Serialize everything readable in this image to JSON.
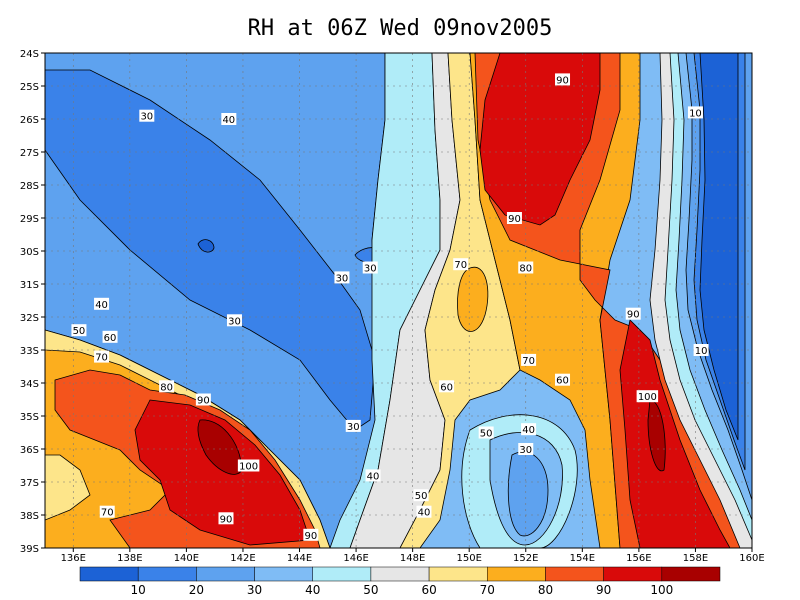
{
  "chart_data": {
    "type": "heatmap",
    "title": "RH at 06Z Wed 09nov2005",
    "x_ticks": [
      "136E",
      "138E",
      "140E",
      "142E",
      "144E",
      "146E",
      "148E",
      "150E",
      "152E",
      "154E",
      "156E",
      "158E",
      "160E"
    ],
    "y_ticks": [
      "24S",
      "25S",
      "26S",
      "27S",
      "28S",
      "29S",
      "30S",
      "31S",
      "32S",
      "33S",
      "34S",
      "35S",
      "36S",
      "37S",
      "38S",
      "39S"
    ],
    "xlim": [
      135,
      160
    ],
    "ylim": [
      -39,
      -24
    ],
    "grid": true,
    "colorbar": {
      "labels": [
        "10",
        "20",
        "30",
        "40",
        "50",
        "60",
        "70",
        "80",
        "90",
        "100"
      ],
      "colors": [
        "#1c62d6",
        "#3a82e9",
        "#5ea2ef",
        "#7fbcf5",
        "#b0ecf8",
        "#e6e6e6",
        "#fde58a",
        "#fcae1e",
        "#f4541c",
        "#d90a0a",
        "#a80000"
      ]
    },
    "contour_labels": [
      {
        "text": "30",
        "lon": 138.6,
        "lat": -25.9
      },
      {
        "text": "40",
        "lon": 141.5,
        "lat": -26.0
      },
      {
        "text": "30",
        "lon": 145.5,
        "lat": -30.8
      },
      {
        "text": "30",
        "lon": 146.5,
        "lat": -30.5
      },
      {
        "text": "30",
        "lon": 141.7,
        "lat": -32.1
      },
      {
        "text": "40",
        "lon": 137.0,
        "lat": -31.6
      },
      {
        "text": "50",
        "lon": 136.2,
        "lat": -32.4
      },
      {
        "text": "60",
        "lon": 137.3,
        "lat": -32.6
      },
      {
        "text": "70",
        "lon": 137.0,
        "lat": -33.2
      },
      {
        "text": "80",
        "lon": 139.3,
        "lat": -34.1
      },
      {
        "text": "90",
        "lon": 140.6,
        "lat": -34.5
      },
      {
        "text": "100",
        "lon": 142.2,
        "lat": -36.5
      },
      {
        "text": "90",
        "lon": 141.4,
        "lat": -38.1
      },
      {
        "text": "90",
        "lon": 144.4,
        "lat": -38.6
      },
      {
        "text": "70",
        "lon": 137.2,
        "lat": -37.9
      },
      {
        "text": "30",
        "lon": 145.9,
        "lat": -35.3
      },
      {
        "text": "40",
        "lon": 146.6,
        "lat": -36.8
      },
      {
        "text": "50",
        "lon": 148.3,
        "lat": -37.4
      },
      {
        "text": "40",
        "lon": 148.4,
        "lat": -37.9
      },
      {
        "text": "60",
        "lon": 149.2,
        "lat": -34.1
      },
      {
        "text": "70",
        "lon": 149.7,
        "lat": -30.4
      },
      {
        "text": "50",
        "lon": 150.6,
        "lat": -35.5
      },
      {
        "text": "40",
        "lon": 152.1,
        "lat": -35.4
      },
      {
        "text": "30",
        "lon": 152.0,
        "lat": -36.0
      },
      {
        "text": "70",
        "lon": 152.1,
        "lat": -33.3
      },
      {
        "text": "60",
        "lon": 153.3,
        "lat": -33.9
      },
      {
        "text": "80",
        "lon": 152.0,
        "lat": -30.5
      },
      {
        "text": "90",
        "lon": 151.6,
        "lat": -29.0
      },
      {
        "text": "90",
        "lon": 153.3,
        "lat": -24.8
      },
      {
        "text": "90",
        "lon": 155.8,
        "lat": -31.9
      },
      {
        "text": "100",
        "lon": 156.3,
        "lat": -34.4
      },
      {
        "text": "10",
        "lon": 158.0,
        "lat": -25.8
      },
      {
        "text": "10",
        "lon": 158.2,
        "lat": -33.0
      }
    ]
  }
}
